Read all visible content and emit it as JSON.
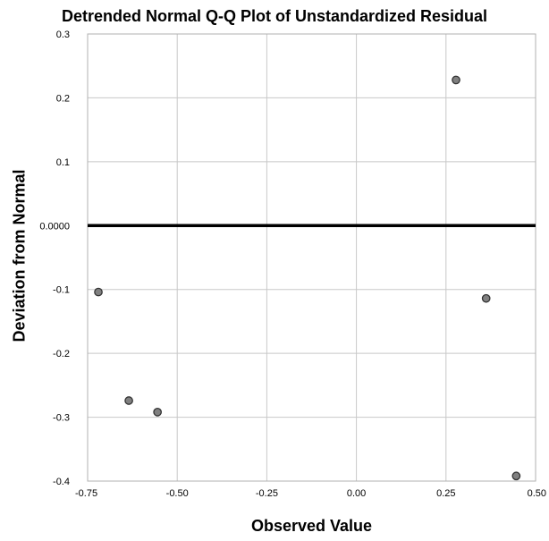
{
  "chart_data": {
    "type": "scatter",
    "title": "Detrended Normal Q-Q Plot of Unstandardized Residual",
    "xlabel": "Observed Value",
    "ylabel": "Deviation from Normal",
    "xlim": [
      -0.75,
      0.5
    ],
    "ylim": [
      -0.4,
      0.3
    ],
    "x_ticks": [
      -0.75,
      -0.5,
      -0.25,
      0.0,
      0.25,
      0.5
    ],
    "x_tick_labels": [
      "-0.75",
      "-0.50",
      "-0.25",
      "0.00",
      "0.25",
      "0.50"
    ],
    "y_ticks": [
      -0.4,
      -0.3,
      -0.2,
      -0.1,
      0.0,
      0.1,
      0.2,
      0.3
    ],
    "y_tick_labels": [
      "-0.4",
      "-0.3",
      "-0.2",
      "-0.1",
      "0.0000",
      "0.1",
      "0.2",
      "0.3"
    ],
    "grid": true,
    "reference_line_y": 0.0,
    "points": [
      {
        "x": -0.72,
        "y": -0.104
      },
      {
        "x": -0.635,
        "y": -0.274
      },
      {
        "x": -0.555,
        "y": -0.292
      },
      {
        "x": 0.278,
        "y": 0.228
      },
      {
        "x": 0.362,
        "y": -0.114
      },
      {
        "x": 0.446,
        "y": -0.392
      }
    ],
    "colors": {
      "point_fill": "#808080",
      "point_stroke": "#333333",
      "grid": "#c8c8c8",
      "reference_line": "#000000"
    }
  }
}
